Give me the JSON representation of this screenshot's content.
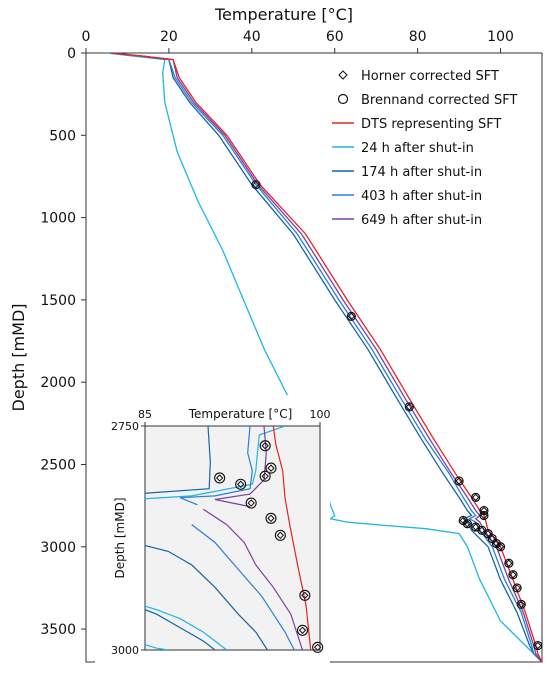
{
  "chart_data": {
    "type": "line",
    "xlabel": "Temperature [°C]",
    "ylabel": "Depth [mMD]",
    "xlim": [
      0,
      110
    ],
    "ylim": [
      3700,
      0
    ],
    "xticks": [
      "0",
      "20",
      "40",
      "60",
      "80",
      "100"
    ],
    "yticks": [
      "0",
      "500",
      "1000",
      "1500",
      "2000",
      "2500",
      "3000",
      "3500"
    ],
    "legend_position": "top-right",
    "series": [
      {
        "name": "24 h after shut-in",
        "color": "#1fb5e8",
        "points": [
          [
            5,
            0
          ],
          [
            12,
            20
          ],
          [
            19,
            40
          ],
          [
            18.5,
            120
          ],
          [
            19,
            300
          ],
          [
            22,
            600
          ],
          [
            27,
            900
          ],
          [
            33,
            1200
          ],
          [
            38,
            1500
          ],
          [
            43,
            1800
          ],
          [
            48,
            2050
          ],
          [
            53,
            2300
          ],
          [
            56,
            2500
          ],
          [
            58,
            2650
          ],
          [
            59,
            2750
          ],
          [
            60,
            2810
          ],
          [
            59,
            2830
          ],
          [
            63,
            2850
          ],
          [
            72,
            2870
          ],
          [
            82,
            2890
          ],
          [
            90,
            2920
          ],
          [
            92,
            3000
          ],
          [
            95,
            3200
          ],
          [
            100,
            3450
          ],
          [
            106,
            3600
          ],
          [
            108,
            3650
          ],
          [
            110,
            3700
          ]
        ]
      },
      {
        "name": "174 h after shut-in",
        "color": "#1566a8",
        "points": [
          [
            6,
            0
          ],
          [
            14,
            20
          ],
          [
            20,
            40
          ],
          [
            21,
            150
          ],
          [
            25,
            300
          ],
          [
            32,
            500
          ],
          [
            40,
            800
          ],
          [
            50,
            1100
          ],
          [
            60,
            1500
          ],
          [
            68,
            1800
          ],
          [
            75,
            2100
          ],
          [
            81,
            2350
          ],
          [
            86,
            2550
          ],
          [
            90,
            2700
          ],
          [
            92,
            2780
          ],
          [
            93,
            2810
          ],
          [
            91,
            2830
          ],
          [
            92,
            2850
          ],
          [
            93,
            2900
          ],
          [
            97,
            3000
          ],
          [
            100,
            3200
          ],
          [
            104,
            3400
          ],
          [
            107,
            3600
          ],
          [
            108,
            3650
          ],
          [
            110,
            3700
          ]
        ]
      },
      {
        "name": "403 h after shut-in",
        "color": "#2b7fd6",
        "points": [
          [
            6,
            0
          ],
          [
            14,
            20
          ],
          [
            20,
            40
          ],
          [
            21.5,
            150
          ],
          [
            25.5,
            300
          ],
          [
            33,
            500
          ],
          [
            41,
            800
          ],
          [
            51,
            1100
          ],
          [
            61,
            1500
          ],
          [
            69,
            1800
          ],
          [
            76,
            2100
          ],
          [
            82,
            2350
          ],
          [
            87.5,
            2550
          ],
          [
            91,
            2700
          ],
          [
            93,
            2780
          ],
          [
            94,
            2810
          ],
          [
            92.5,
            2830
          ],
          [
            94,
            2850
          ],
          [
            95,
            2900
          ],
          [
            98,
            3000
          ],
          [
            101,
            3200
          ],
          [
            105,
            3400
          ],
          [
            107.5,
            3600
          ],
          [
            108,
            3650
          ],
          [
            110,
            3700
          ]
        ]
      },
      {
        "name": "649 h after shut-in",
        "color": "#7b3fa8",
        "points": [
          [
            6,
            0
          ],
          [
            14,
            20
          ],
          [
            21,
            40
          ],
          [
            22,
            150
          ],
          [
            26,
            300
          ],
          [
            33.5,
            500
          ],
          [
            41.5,
            800
          ],
          [
            52,
            1100
          ],
          [
            62,
            1500
          ],
          [
            70,
            1800
          ],
          [
            77,
            2100
          ],
          [
            83,
            2350
          ],
          [
            88,
            2550
          ],
          [
            92,
            2700
          ],
          [
            94,
            2780
          ],
          [
            95,
            2810
          ],
          [
            94,
            2830
          ],
          [
            95,
            2850
          ],
          [
            96,
            2900
          ],
          [
            99,
            3000
          ],
          [
            102,
            3200
          ],
          [
            105.5,
            3400
          ],
          [
            108,
            3600
          ],
          [
            108.5,
            3650
          ],
          [
            110,
            3700
          ]
        ]
      },
      {
        "name": "DTS representing SFT",
        "color": "#e8231f",
        "points": [
          [
            6,
            0
          ],
          [
            14,
            20
          ],
          [
            21,
            40
          ],
          [
            22.5,
            150
          ],
          [
            26.5,
            300
          ],
          [
            34,
            500
          ],
          [
            42,
            800
          ],
          [
            53,
            1100
          ],
          [
            63,
            1500
          ],
          [
            71,
            1800
          ],
          [
            78,
            2100
          ],
          [
            84,
            2350
          ],
          [
            89,
            2550
          ],
          [
            93,
            2700
          ],
          [
            95,
            2780
          ],
          [
            96,
            2810
          ],
          [
            96.5,
            2850
          ],
          [
            97,
            2900
          ],
          [
            100,
            3000
          ],
          [
            103,
            3200
          ],
          [
            106,
            3400
          ],
          [
            108.5,
            3600
          ],
          [
            109,
            3650
          ],
          [
            110,
            3700
          ]
        ]
      }
    ],
    "markers": [
      {
        "name": "Horner corrected SFT",
        "shape": "diamond",
        "points": [
          [
            41,
            800
          ],
          [
            64,
            1600
          ],
          [
            78,
            2150
          ],
          [
            90,
            2600
          ],
          [
            94,
            2700
          ],
          [
            96,
            2780
          ],
          [
            96,
            2810
          ],
          [
            91,
            2840
          ],
          [
            92,
            2860
          ],
          [
            94,
            2880
          ],
          [
            95.5,
            2900
          ],
          [
            97,
            2920
          ],
          [
            98,
            2950
          ],
          [
            99,
            2980
          ],
          [
            100,
            3000
          ],
          [
            102,
            3100
          ],
          [
            103,
            3170
          ],
          [
            104,
            3250
          ],
          [
            105,
            3350
          ],
          [
            109,
            3600
          ]
        ]
      },
      {
        "name": "Brennand corrected SFT",
        "shape": "circle",
        "points": [
          [
            41,
            800
          ],
          [
            64,
            1600
          ],
          [
            78,
            2150
          ],
          [
            90,
            2600
          ],
          [
            94,
            2700
          ],
          [
            96,
            2780
          ],
          [
            96,
            2810
          ],
          [
            91,
            2840
          ],
          [
            92,
            2860
          ],
          [
            94,
            2880
          ],
          [
            95.5,
            2900
          ],
          [
            97,
            2920
          ],
          [
            98,
            2950
          ],
          [
            99,
            2980
          ],
          [
            100,
            3000
          ],
          [
            102,
            3100
          ],
          [
            103,
            3170
          ],
          [
            104,
            3250
          ],
          [
            105,
            3350
          ],
          [
            109,
            3600
          ]
        ]
      }
    ],
    "inset": {
      "xlabel": "Temperature [°C]",
      "ylabel": "Depth [mMD]",
      "xlim": [
        85,
        100
      ],
      "ylim": [
        3000,
        2750
      ],
      "xticks": [
        "85",
        "100"
      ],
      "yticks": [
        "2750",
        "3000"
      ],
      "background": "#f2f2f2"
    }
  }
}
